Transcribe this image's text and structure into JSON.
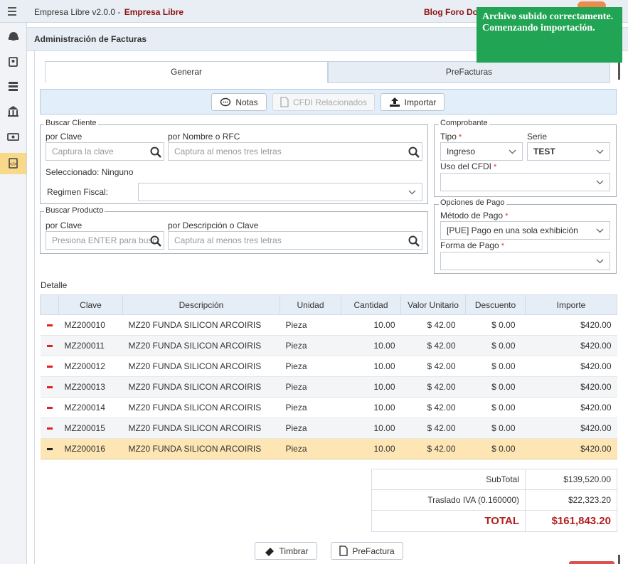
{
  "topbar": {
    "app": "Empresa Libre v2.0.0 -",
    "company": "Empresa Libre",
    "links": "Blog Foro Do"
  },
  "toast": "Archivo subido correctamente. Comenzando importación.",
  "page_title": "Administración de Facturas",
  "tabs": [
    "Generar",
    "PreFacturas"
  ],
  "toolbar": [
    "Notas",
    "CFDI Relacionados",
    "Importar"
  ],
  "required_mark": "*",
  "cliente": {
    "legend": "Buscar Cliente",
    "clave_label": "por Clave",
    "clave_placeholder": "Captura la clave",
    "nombre_label": "por Nombre o RFC",
    "nombre_placeholder": "Captura al menos tres letras",
    "selected": "Seleccionado: Ninguno",
    "regimen_label": "Regimen Fiscal:"
  },
  "producto": {
    "legend": "Buscar Producto",
    "clave_label": "por Clave",
    "clave_placeholder": "Presiona ENTER para busc",
    "desc_label": "por Descripción o Clave",
    "desc_placeholder": "Captura al menos tres letras"
  },
  "comprobante": {
    "legend": "Comprobante",
    "tipo_label": "Tipo",
    "tipo": "Ingreso",
    "serie_label": "Serie",
    "serie": "TEST",
    "uso_label": "Uso del CFDI"
  },
  "pago": {
    "legend": "Opciones de Pago",
    "metodo_label": "Método de Pago",
    "metodo": "[PUE] Pago en una sola exhibición",
    "forma_label": "Forma de Pago"
  },
  "detalle": "Detalle",
  "table": {
    "columns": [
      "Clave",
      "Descripción",
      "Unidad",
      "Cantidad",
      "Valor Unitario",
      "Descuento",
      "Importe"
    ],
    "rows": [
      [
        "MZ200010",
        "MZ20 FUNDA SILICON ARCOIRIS",
        "Pieza",
        "10.00",
        "$ 42.00",
        "$ 0.00",
        "$420.00"
      ],
      [
        "MZ200011",
        "MZ20 FUNDA SILICON ARCOIRIS",
        "Pieza",
        "10.00",
        "$ 42.00",
        "$ 0.00",
        "$420.00"
      ],
      [
        "MZ200012",
        "MZ20 FUNDA SILICON ARCOIRIS",
        "Pieza",
        "10.00",
        "$ 42.00",
        "$ 0.00",
        "$420.00"
      ],
      [
        "MZ200013",
        "MZ20 FUNDA SILICON ARCOIRIS",
        "Pieza",
        "10.00",
        "$ 42.00",
        "$ 0.00",
        "$420.00"
      ],
      [
        "MZ200014",
        "MZ20 FUNDA SILICON ARCOIRIS",
        "Pieza",
        "10.00",
        "$ 42.00",
        "$ 0.00",
        "$420.00"
      ],
      [
        "MZ200015",
        "MZ20 FUNDA SILICON ARCOIRIS",
        "Pieza",
        "10.00",
        "$ 42.00",
        "$ 0.00",
        "$420.00"
      ],
      [
        "MZ200016",
        "MZ20 FUNDA SILICON ARCOIRIS",
        "Pieza",
        "10.00",
        "$ 42.00",
        "$ 0.00",
        "$420.00"
      ]
    ]
  },
  "totals": [
    [
      "SubTotal",
      "$139,520.00"
    ],
    [
      "Traslado IVA (0.160000)",
      "$22,323.20"
    ],
    [
      "TOTAL",
      "$161,843.20"
    ]
  ],
  "actions": [
    "Timbrar",
    "PreFactura"
  ]
}
